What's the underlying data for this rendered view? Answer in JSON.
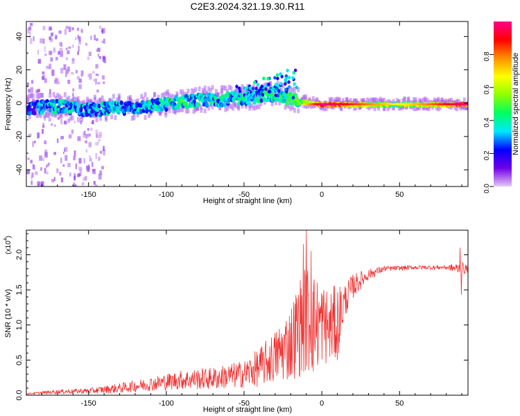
{
  "title": "C2E3.2024.321.19.30.R11",
  "chart_data": [
    {
      "type": "heatmap",
      "xlabel": "Height of straight line (km)",
      "ylabel": "Frequency (Hz)",
      "xlim": [
        -190,
        94
      ],
      "ylim": [
        -50,
        49
      ],
      "x_ticks": [
        -150,
        -100,
        -50,
        0,
        50
      ],
      "y_ticks": [
        -40,
        -20,
        0,
        20,
        40
      ],
      "grid": false,
      "colorbar": {
        "label": "Normalized spectral amplitude",
        "range": [
          0.0,
          1.0
        ],
        "ticks": [
          0.0,
          0.2,
          0.4,
          0.6,
          0.8
        ],
        "tick_labels": [
          "0.0",
          "0.2",
          "0.4",
          "0.6",
          "0.8"
        ],
        "colormap": [
          "#e8c8f4",
          "#7000e8",
          "#0000ff",
          "#00e8ff",
          "#00ff60",
          "#90ff00",
          "#ffff00",
          "#ff9000",
          "#ff0000",
          "#ff0090"
        ]
      },
      "ridge": [
        {
          "x": -190,
          "f": -3,
          "amp": 0.3
        },
        {
          "x": -170,
          "f": -2,
          "amp": 0.45
        },
        {
          "x": -150,
          "f": -4,
          "amp": 0.4
        },
        {
          "x": -130,
          "f": -3,
          "amp": 0.45
        },
        {
          "x": -110,
          "f": -2,
          "amp": 0.45
        },
        {
          "x": -90,
          "f": 1,
          "amp": 0.5
        },
        {
          "x": -70,
          "f": 2,
          "amp": 0.45
        },
        {
          "x": -50,
          "f": 3,
          "amp": 0.45
        },
        {
          "x": -30,
          "f": 5,
          "amp": 0.5
        },
        {
          "x": -15,
          "f": 1,
          "amp": 0.55
        },
        {
          "x": 0,
          "f": -1,
          "amp": 0.95
        },
        {
          "x": 20,
          "f": -1,
          "amp": 0.8
        },
        {
          "x": 50,
          "f": -1,
          "amp": 0.6
        },
        {
          "x": 94,
          "f": -1,
          "amp": 0.95
        }
      ]
    },
    {
      "type": "line",
      "xlabel": "Height of straight line (km)",
      "ylabel": "SNR (10 * v/v)",
      "y_multiplier": "(x10",
      "y_multiplier_exp": "4",
      "xlim": [
        -190,
        94
      ],
      "ylim": [
        0,
        2.35
      ],
      "x_ticks": [
        -150,
        -100,
        -50,
        0,
        50
      ],
      "y_ticks": [
        0.0,
        0.5,
        1.0,
        1.5,
        2.0
      ],
      "y_tick_labels": [
        "0.0",
        "0.5",
        "1.0",
        "1.5",
        "2.0"
      ],
      "grid": false,
      "color": "#f03030",
      "envelope": {
        "x": [
          -190,
          -170,
          -150,
          -130,
          -110,
          -90,
          -70,
          -50,
          -40,
          -30,
          -20,
          -15,
          -10,
          -5,
          0,
          5,
          10,
          15,
          20,
          30,
          40,
          60,
          80,
          90,
          94
        ],
        "mean": [
          0.02,
          0.05,
          0.06,
          0.1,
          0.16,
          0.22,
          0.24,
          0.3,
          0.4,
          0.55,
          0.75,
          0.95,
          1.1,
          1.0,
          1.05,
          0.95,
          1.05,
          1.35,
          1.55,
          1.72,
          1.8,
          1.82,
          1.82,
          1.8,
          1.8
        ],
        "noise": [
          0.01,
          0.03,
          0.04,
          0.07,
          0.1,
          0.14,
          0.16,
          0.2,
          0.28,
          0.38,
          0.55,
          0.7,
          0.8,
          0.75,
          0.6,
          0.55,
          0.55,
          0.25,
          0.18,
          0.08,
          0.04,
          0.03,
          0.03,
          0.1,
          0.05
        ]
      },
      "peaks": [
        {
          "x": -10,
          "y": 2.35
        },
        {
          "x": -12,
          "y": 2.15
        },
        {
          "x": -7,
          "y": 2.05
        },
        {
          "x": 89,
          "y": 2.1
        },
        {
          "x": 89.6,
          "y": 1.43
        },
        {
          "x": 10,
          "y": 0.5
        }
      ]
    }
  ]
}
